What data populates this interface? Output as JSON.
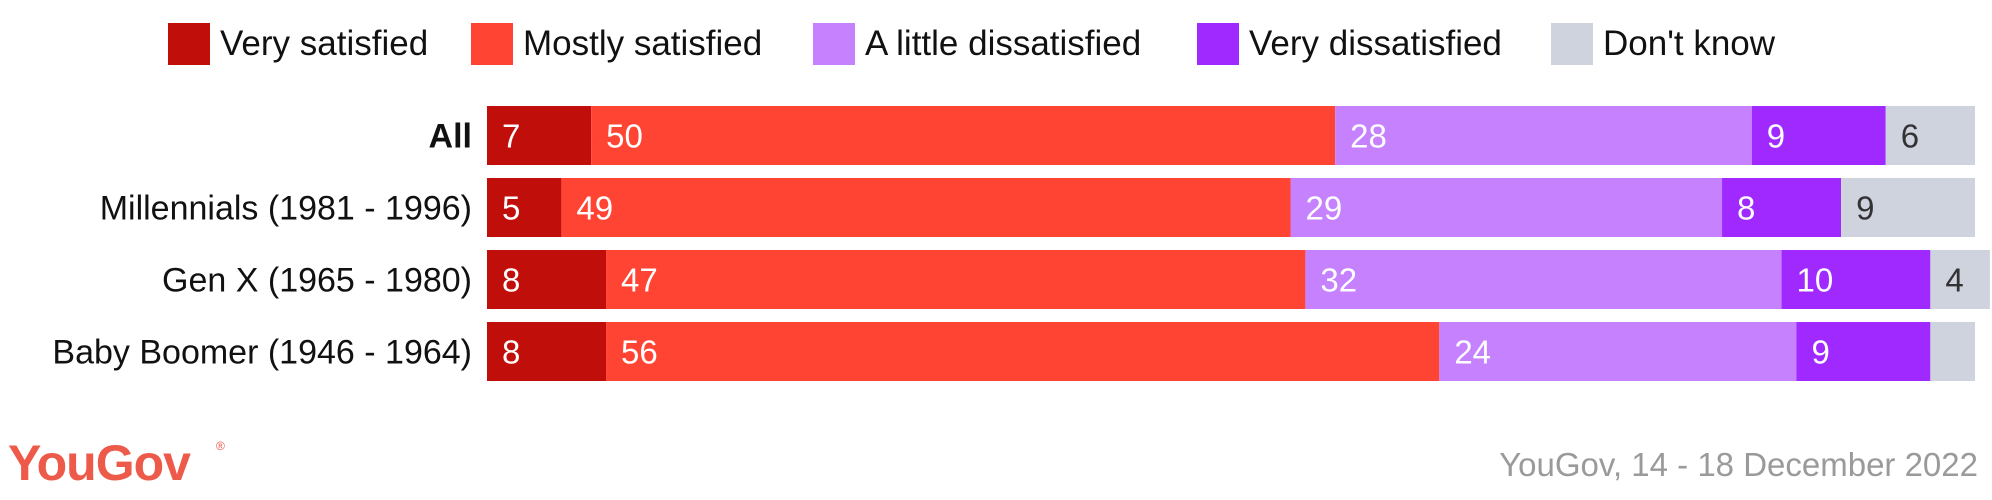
{
  "chart_data": {
    "type": "bar",
    "orientation": "horizontal",
    "stacked": true,
    "categories": [
      "All",
      "Millennials (1981 - 1996)",
      "Gen X (1965 - 1980)",
      "Baby Boomer (1946 - 1964)"
    ],
    "series": [
      {
        "name": "Very satisfied",
        "color": "#c00f0b",
        "values": [
          7,
          5,
          8,
          8
        ]
      },
      {
        "name": "Mostly satisfied",
        "color": "#ff4433",
        "values": [
          50,
          49,
          47,
          56
        ]
      },
      {
        "name": "A little dissatisfied",
        "color": "#c681ff",
        "values": [
          28,
          29,
          32,
          24
        ]
      },
      {
        "name": "Very dissatisfied",
        "color": "#9f29ff",
        "values": [
          9,
          8,
          10,
          9
        ]
      },
      {
        "name": "Don't know",
        "color": "#ced3de",
        "values": [
          6,
          9,
          4,
          3
        ]
      }
    ],
    "shown_labels": [
      [
        "7",
        "50",
        "28",
        "9",
        "6"
      ],
      [
        "5",
        "49",
        "29",
        "8",
        "9"
      ],
      [
        "8",
        "47",
        "32",
        "10",
        "4"
      ],
      [
        "8",
        "56",
        "24",
        "9",
        ""
      ]
    ],
    "label_colors": [
      "#ffffff",
      "#ffffff",
      "#ffffff",
      "#ffffff",
      "#333333"
    ],
    "bold_categories": [
      "All"
    ],
    "legend_position": "top",
    "xlim": [
      0,
      100
    ]
  },
  "footer": {
    "logo": "YouGov",
    "logo_mark": "®",
    "source": "YouGov, 14 - 18 December 2022"
  }
}
